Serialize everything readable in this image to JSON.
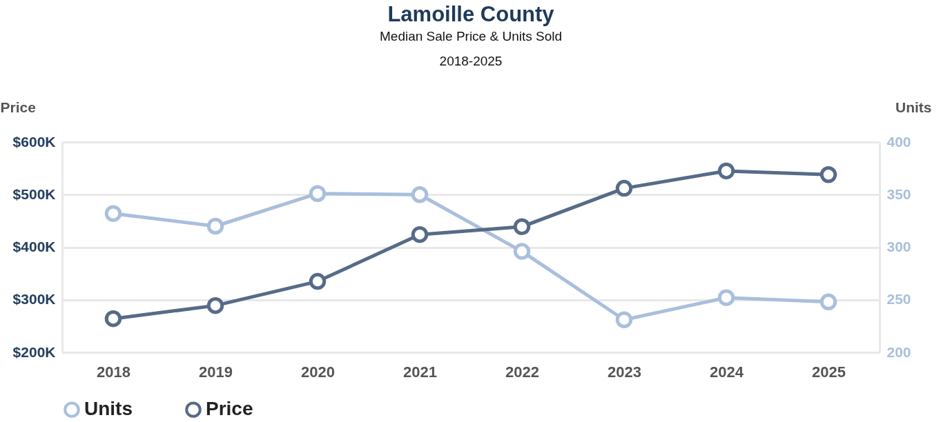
{
  "chart_data": {
    "type": "line",
    "title": "Lamoille County",
    "subtitle": "Median Sale Price & Units Sold",
    "annotations": [
      "2018-2025"
    ],
    "ylabel": "Price",
    "y2label": "Units",
    "categories": [
      "2018",
      "2019",
      "2020",
      "2021",
      "2022",
      "2023",
      "2024",
      "2025"
    ],
    "series": [
      {
        "name": "Units",
        "color": "#a9bfdc",
        "axis": "y2",
        "values": [
          332,
          320,
          351,
          350,
          296,
          231,
          252,
          248
        ]
      },
      {
        "name": "Price",
        "color": "#566b87",
        "axis": "y",
        "values": [
          264000,
          289000,
          335000,
          424000,
          439000,
          512000,
          545000,
          538000
        ]
      }
    ],
    "ylim": [
      200000,
      600000
    ],
    "yticks": [
      {
        "value": 200000,
        "label": "$200K"
      },
      {
        "value": 300000,
        "label": "$300K"
      },
      {
        "value": 400000,
        "label": "$400K"
      },
      {
        "value": 500000,
        "label": "$500K"
      },
      {
        "value": 600000,
        "label": "$600K"
      }
    ],
    "y2lim": [
      200,
      400
    ],
    "y2ticks": [
      200,
      250,
      300,
      350,
      400
    ],
    "grid": "y",
    "legend": "bottom",
    "marker": "circle",
    "line_style": "solid"
  }
}
